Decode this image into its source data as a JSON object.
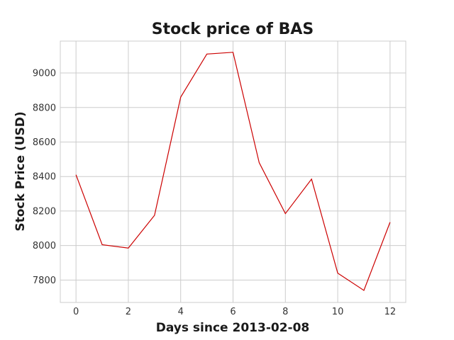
{
  "chart_data": {
    "type": "line",
    "title": "Stock price of BAS",
    "xlabel": "Days since 2013-02-08",
    "ylabel": "Stock Price (USD)",
    "x": [
      0,
      1,
      2,
      3,
      4,
      5,
      6,
      7,
      8,
      9,
      10,
      11,
      12
    ],
    "series": [
      {
        "color": "#cc0000",
        "values": [
          8410,
          8005,
          7985,
          8175,
          8860,
          9110,
          9120,
          8480,
          8185,
          8385,
          7840,
          7740,
          8135
        ]
      }
    ],
    "xlim": [
      -0.6,
      12.6
    ],
    "ylim": [
      7670,
      9185
    ],
    "xticks": [
      0,
      2,
      4,
      6,
      8,
      10,
      12
    ],
    "yticks": [
      7800,
      8000,
      8200,
      8400,
      8600,
      8800,
      9000
    ],
    "grid": true
  }
}
